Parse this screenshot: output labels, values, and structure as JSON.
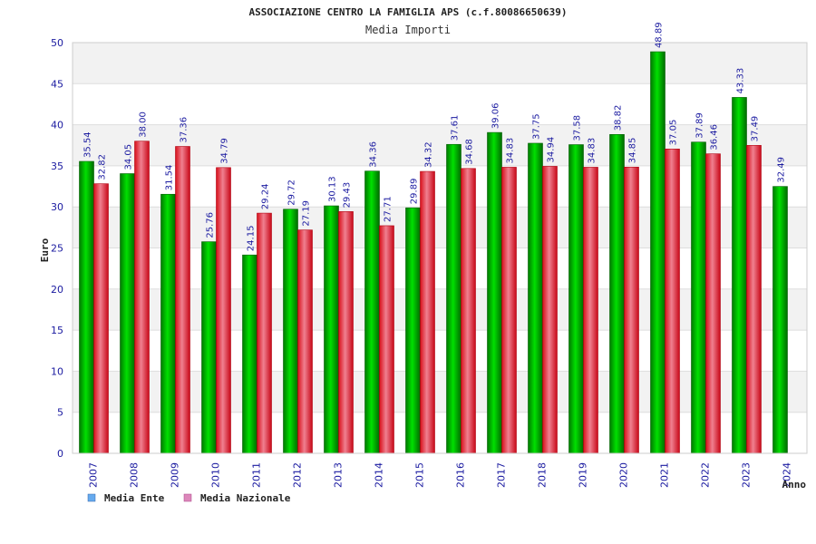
{
  "chart_data": {
    "type": "bar",
    "title": "ASSOCIAZIONE CENTRO LA FAMIGLIA APS (c.f.80086650639)",
    "subtitle": "Media Importi",
    "xlabel": "Anno",
    "ylabel": "Euro",
    "ylim": [
      0,
      50
    ],
    "yticks": [
      0,
      5,
      10,
      15,
      20,
      25,
      30,
      35,
      40,
      45,
      50
    ],
    "categories": [
      "2007",
      "2008",
      "2009",
      "2010",
      "2011",
      "2012",
      "2013",
      "2014",
      "2015",
      "2016",
      "2017",
      "2018",
      "2019",
      "2020",
      "2021",
      "2022",
      "2023",
      "2024"
    ],
    "series": [
      {
        "name": "Media Ente",
        "color": "#00b400",
        "legend_color": "#66aaee",
        "values": [
          35.54,
          34.05,
          31.54,
          25.76,
          24.15,
          29.72,
          30.13,
          34.36,
          29.89,
          37.61,
          39.06,
          37.75,
          37.58,
          38.82,
          48.89,
          37.89,
          43.33,
          32.49
        ],
        "labels": [
          "35.54",
          "34.05",
          "31.54",
          "25.76",
          "24.15",
          "29.72",
          "30.13",
          "34.36",
          "29.89",
          "37.61",
          "39.06",
          "37.75",
          "37.58",
          "38.82",
          "48.89",
          "37.89",
          "43.33",
          "32.49"
        ]
      },
      {
        "name": "Media Nazionale",
        "color": "#e8202a",
        "legend_color": "#dd88bb",
        "values": [
          32.82,
          38.0,
          37.36,
          34.79,
          29.24,
          27.19,
          29.43,
          27.71,
          34.32,
          34.68,
          34.83,
          34.94,
          34.83,
          34.85,
          37.05,
          36.46,
          37.49,
          null
        ],
        "labels": [
          "32.82",
          "38.00",
          "37.36",
          "34.79",
          "29.24",
          "27.19",
          "29.43",
          "27.71",
          "34.32",
          "34.68",
          "34.83",
          "34.94",
          "34.83",
          "34.85",
          "37.05",
          "36.46",
          "37.49",
          ""
        ]
      }
    ],
    "grid": true,
    "legend_position": "bottom-left"
  }
}
